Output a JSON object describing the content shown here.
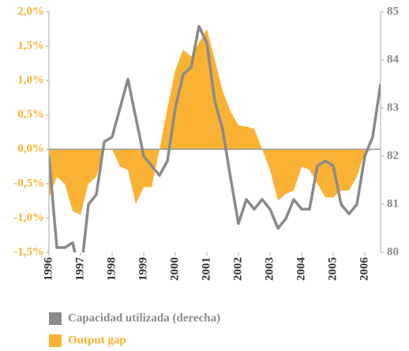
{
  "chart_data": {
    "type": "line-area",
    "x": [
      1996,
      1996.25,
      1996.5,
      1996.75,
      1997,
      1997.25,
      1997.5,
      1997.75,
      1998,
      1998.25,
      1998.5,
      1998.75,
      1999,
      1999.25,
      1999.5,
      1999.75,
      2000,
      2000.25,
      2000.5,
      2000.75,
      2001,
      2001.25,
      2001.5,
      2001.75,
      2002,
      2002.25,
      2002.5,
      2002.75,
      2003,
      2003.25,
      2003.5,
      2003.75,
      2004,
      2004.25,
      2004.5,
      2004.75,
      2005,
      2005.25,
      2005.5,
      2005.75,
      2006,
      2006.25,
      2006.5
    ],
    "xlim": [
      1996,
      2006.5
    ],
    "xticks": [
      1996,
      1997,
      1998,
      1999,
      2000,
      2001,
      2002,
      2003,
      2004,
      2005,
      2006
    ],
    "ylim": [
      -1.5,
      2.0
    ],
    "yticks": [
      {
        "value": -1.5,
        "label": "-1,5%"
      },
      {
        "value": -1.0,
        "label": "-1,0%"
      },
      {
        "value": -0.5,
        "label": "-0,5%"
      },
      {
        "value": 0.0,
        "label": "0,0%"
      },
      {
        "value": 0.5,
        "label": "0,5%"
      },
      {
        "value": 1.0,
        "label": "1,0%"
      },
      {
        "value": 1.5,
        "label": "1,5%"
      },
      {
        "value": 2.0,
        "label": "2,0%"
      }
    ],
    "y2lim": [
      80,
      85
    ],
    "y2ticks": [
      80,
      81,
      82,
      83,
      84,
      85
    ],
    "series": [
      {
        "name": "Capacidad utilizada (derecha)",
        "color": "#8a8a8a",
        "axis": "y2",
        "kind": "line",
        "values": [
          82.0,
          80.1,
          80.1,
          80.2,
          79.5,
          81.0,
          81.2,
          82.3,
          82.4,
          83.0,
          83.6,
          82.8,
          82.0,
          81.8,
          81.6,
          81.9,
          83.0,
          83.7,
          83.85,
          84.7,
          84.35,
          83.15,
          82.55,
          81.55,
          80.6,
          81.1,
          80.9,
          81.1,
          80.9,
          80.5,
          80.7,
          81.1,
          80.9,
          80.9,
          81.8,
          81.9,
          81.8,
          81.0,
          80.8,
          81.0,
          82.0,
          82.4,
          83.5
        ]
      },
      {
        "name": "Output gap",
        "color": "#f9b233",
        "axis": "y",
        "kind": "area",
        "values": [
          -0.7,
          -0.4,
          -0.5,
          -0.9,
          -0.95,
          -0.5,
          -0.4,
          0.0,
          0.0,
          -0.25,
          -0.3,
          -0.8,
          -0.55,
          -0.55,
          0.0,
          0.6,
          1.15,
          1.45,
          1.35,
          1.55,
          1.75,
          1.3,
          0.85,
          0.55,
          0.35,
          0.33,
          0.3,
          0.0,
          -0.3,
          -0.75,
          -0.65,
          -0.6,
          -0.25,
          -0.3,
          -0.5,
          -0.7,
          -0.7,
          -0.6,
          -0.6,
          -0.4,
          -0.05,
          0.0,
          null
        ]
      }
    ]
  }
}
